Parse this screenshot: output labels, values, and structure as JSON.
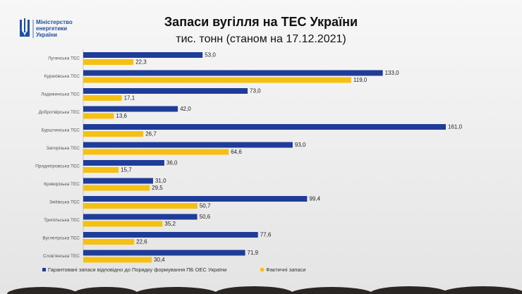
{
  "logo": {
    "lines": [
      "Міністерство",
      "енергетики",
      "України"
    ]
  },
  "chart_data": {
    "type": "bar",
    "orientation": "horizontal",
    "title": "Запаси вугілля на ТЕС України",
    "subtitle": "тис. тонн (станом на 17.12.2021)",
    "categories": [
      "Луганська ТЕС",
      "Курахівська ТЕС",
      "Ладижинська ТЕС",
      "Добротвірська ТЕС",
      "Бурштинська ТЕС",
      "Запорізька ТЕС",
      "Придніпровська ТЕС",
      "Криворізька ТЕС",
      "Зміївська ТЕС",
      "Трипільська ТЕС",
      "Вуглегірська ТЕС",
      "Слов'янська ТЕС"
    ],
    "series": [
      {
        "name": "Гарантовані запаси відповідно до Порядку формування ПБ ОЕС України",
        "color": "#1f3c98",
        "values": [
          53.0,
          133.0,
          73.0,
          42.0,
          161.0,
          93.0,
          36.0,
          31.0,
          99.4,
          50.6,
          77.6,
          71.9
        ],
        "value_labels": [
          "53,0",
          "133,0",
          "73,0",
          "42,0",
          "161,0",
          "93,0",
          "36,0",
          "31,0",
          "99,4",
          "50,6",
          "77,6",
          "71,9"
        ]
      },
      {
        "name": "Фактичні запаси",
        "color": "#f5c014",
        "values": [
          22.3,
          119.0,
          17.1,
          13.6,
          26.7,
          64.6,
          15.7,
          29.5,
          50.7,
          35.2,
          22.6,
          30.4
        ],
        "value_labels": [
          "22,3",
          "119,0",
          "17,1",
          "13,6",
          "26,7",
          "64,6",
          "15,7",
          "29,5",
          "50,7",
          "35,2",
          "22,6",
          "30,4"
        ]
      }
    ],
    "legend": "bottom"
  }
}
